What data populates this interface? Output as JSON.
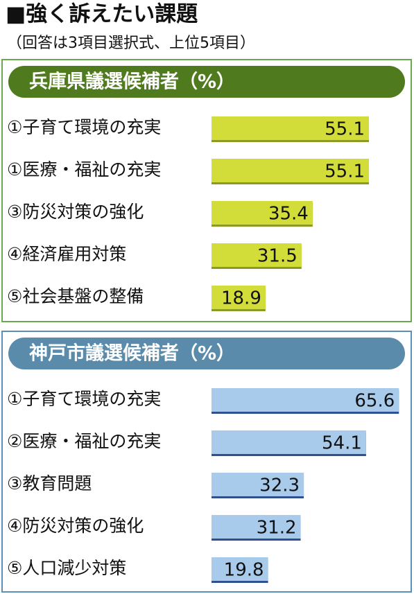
{
  "title": "■強く訴えたい課題",
  "subtitle": "（回答は3項目選択式、上位5項目）",
  "chart_data": [
    {
      "type": "bar",
      "title": "兵庫県議選候補者（%）",
      "categories": [
        "①子育て環境の充実",
        "①医療・福祉の充実",
        "③防災対策の強化",
        "④経済雇用対策",
        "⑤社会基盤の整備"
      ],
      "values": [
        55.1,
        55.1,
        35.4,
        31.5,
        18.9
      ],
      "color": "#d3dd3a"
    },
    {
      "type": "bar",
      "title": "神戸市議選候補者（%）",
      "categories": [
        "①子育て環境の充実",
        "②医療・福祉の充実",
        "③教育問題",
        "④防災対策の強化",
        "⑤人口減少対策"
      ],
      "values": [
        65.6,
        54.1,
        32.3,
        31.2,
        19.8
      ],
      "color": "#a8cbeb"
    }
  ]
}
